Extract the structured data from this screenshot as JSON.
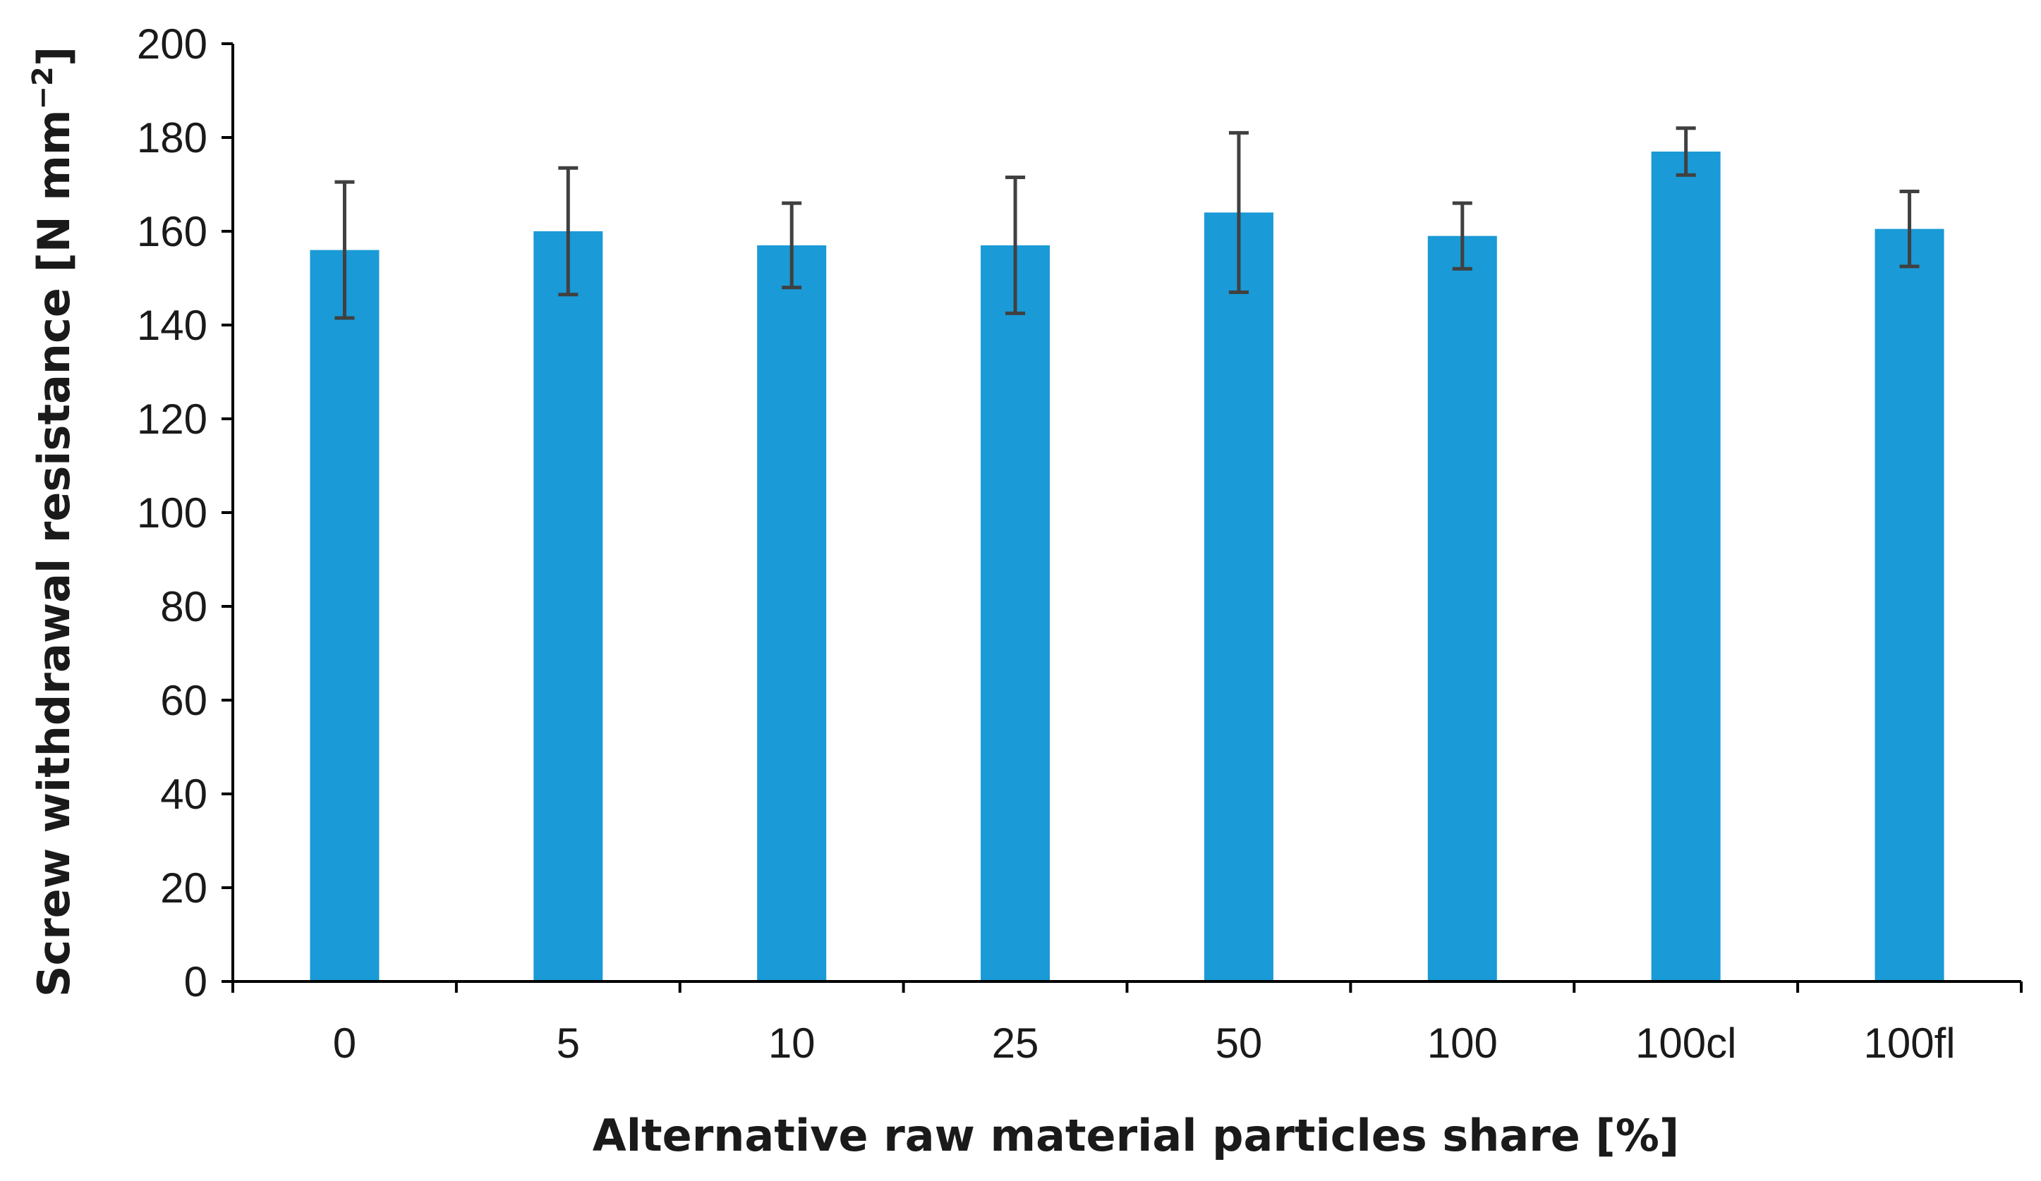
{
  "chart_data": {
    "type": "bar",
    "title": "",
    "xlabel": "Alternative raw material particles share [%]",
    "ylabel": "Screw withdrawal resistance [N mm",
    "ylabel_superscript": "−2",
    "ylabel_suffix": "]",
    "categories": [
      "0",
      "5",
      "10",
      "25",
      "50",
      "100",
      "100cl",
      "100fl"
    ],
    "values": [
      156,
      160,
      157,
      157,
      164,
      159,
      177,
      160.5
    ],
    "errors": [
      14.5,
      13.5,
      9,
      14.5,
      17,
      7,
      5,
      8
    ],
    "ylim": [
      0,
      200
    ],
    "yticks": [
      0,
      20,
      40,
      60,
      80,
      100,
      120,
      140,
      160,
      180,
      200
    ],
    "bar_color": "#1a9ad6",
    "error_color": "#404040",
    "grid": false
  }
}
